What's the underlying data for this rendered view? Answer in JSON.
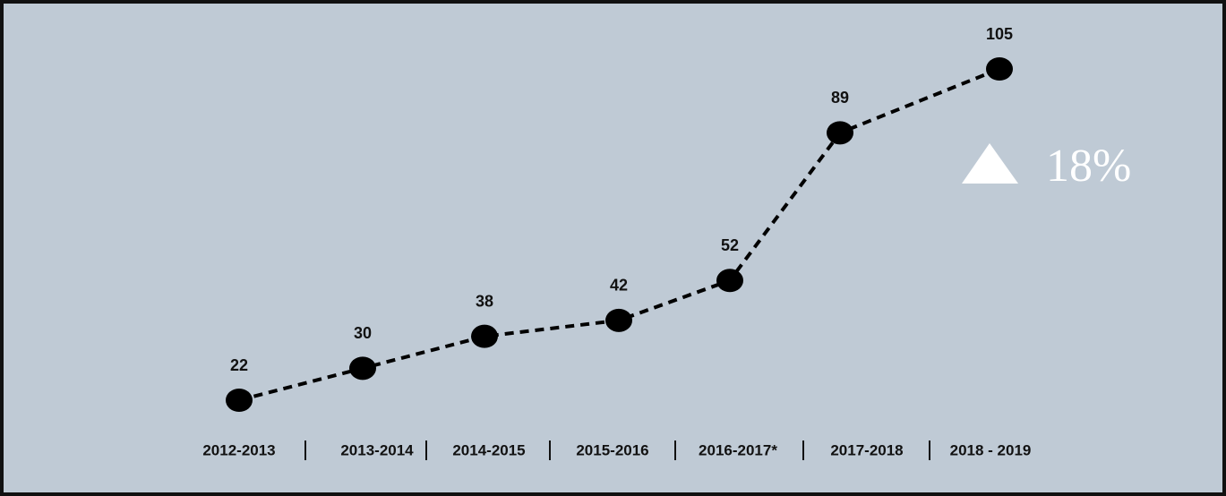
{
  "chart_data": {
    "type": "line",
    "categories": [
      "2012-2013",
      "2013-2014",
      "2014-2015",
      "2015-2016",
      "2016-2017*",
      "2017-2018",
      "2018 - 2019"
    ],
    "values": [
      22,
      30,
      38,
      42,
      52,
      89,
      105
    ],
    "color": "#000000",
    "ylim": [
      22,
      105
    ],
    "annotation": "18%"
  }
}
